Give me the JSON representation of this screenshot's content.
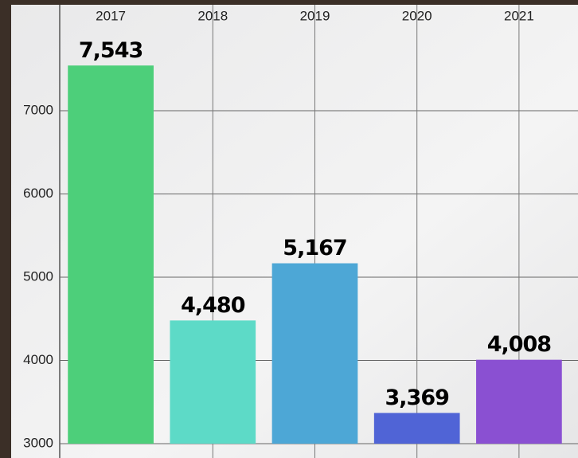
{
  "chart_data": {
    "type": "bar",
    "categories": [
      "2017",
      "2018",
      "2019",
      "2020",
      "2021"
    ],
    "values": [
      7543,
      4480,
      5167,
      3369,
      4008
    ],
    "value_labels": [
      "7,543",
      "4,480",
      "5,167",
      "3,369",
      "4,008"
    ],
    "colors": [
      "#4dcf7a",
      "#5ddac7",
      "#4da7d6",
      "#5064d6",
      "#8a50d2"
    ],
    "ylim": [
      3000,
      8200
    ],
    "yticks": [
      3000,
      4000,
      5000,
      6000,
      7000
    ],
    "grid": true
  }
}
